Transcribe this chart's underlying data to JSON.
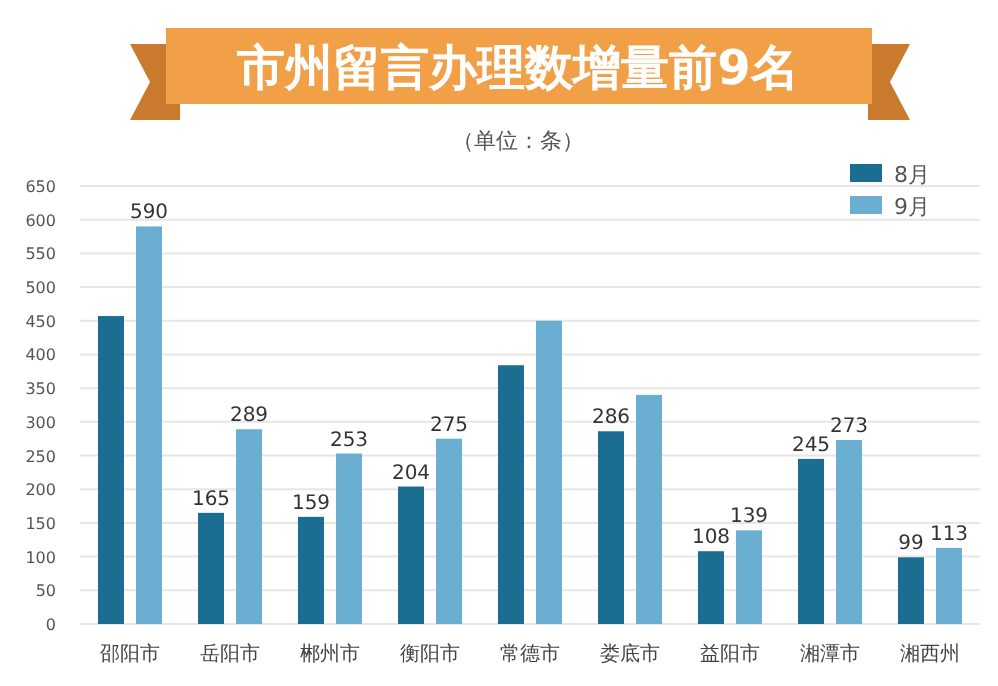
{
  "chart_data": {
    "type": "bar",
    "title": "市州留言办理数增量前9名",
    "subtitle": "（单位：条）",
    "categories": [
      "邵阳市",
      "岳阳市",
      "郴州市",
      "衡阳市",
      "常德市",
      "娄底市",
      "益阳市",
      "湘潭市",
      "湘西州"
    ],
    "series": [
      {
        "name": "8月",
        "color": "#1b6e92",
        "values": [
          457,
          165,
          159,
          204,
          384,
          286,
          108,
          245,
          99
        ],
        "value_labels": [
          null,
          "165",
          "159",
          "204",
          null,
          "286",
          "108",
          "245",
          "99"
        ]
      },
      {
        "name": "9月",
        "color": "#6aaed2",
        "values": [
          590,
          289,
          253,
          275,
          450,
          340,
          139,
          273,
          113
        ],
        "value_labels": [
          "590",
          "289",
          "253",
          "275",
          null,
          null,
          "139",
          "273",
          "113"
        ]
      }
    ],
    "ylim": [
      0,
      650
    ],
    "yticks": [
      0,
      50,
      100,
      150,
      200,
      250,
      300,
      350,
      400,
      450,
      500,
      550,
      600,
      650
    ],
    "grid": "y",
    "legend": "top right"
  }
}
